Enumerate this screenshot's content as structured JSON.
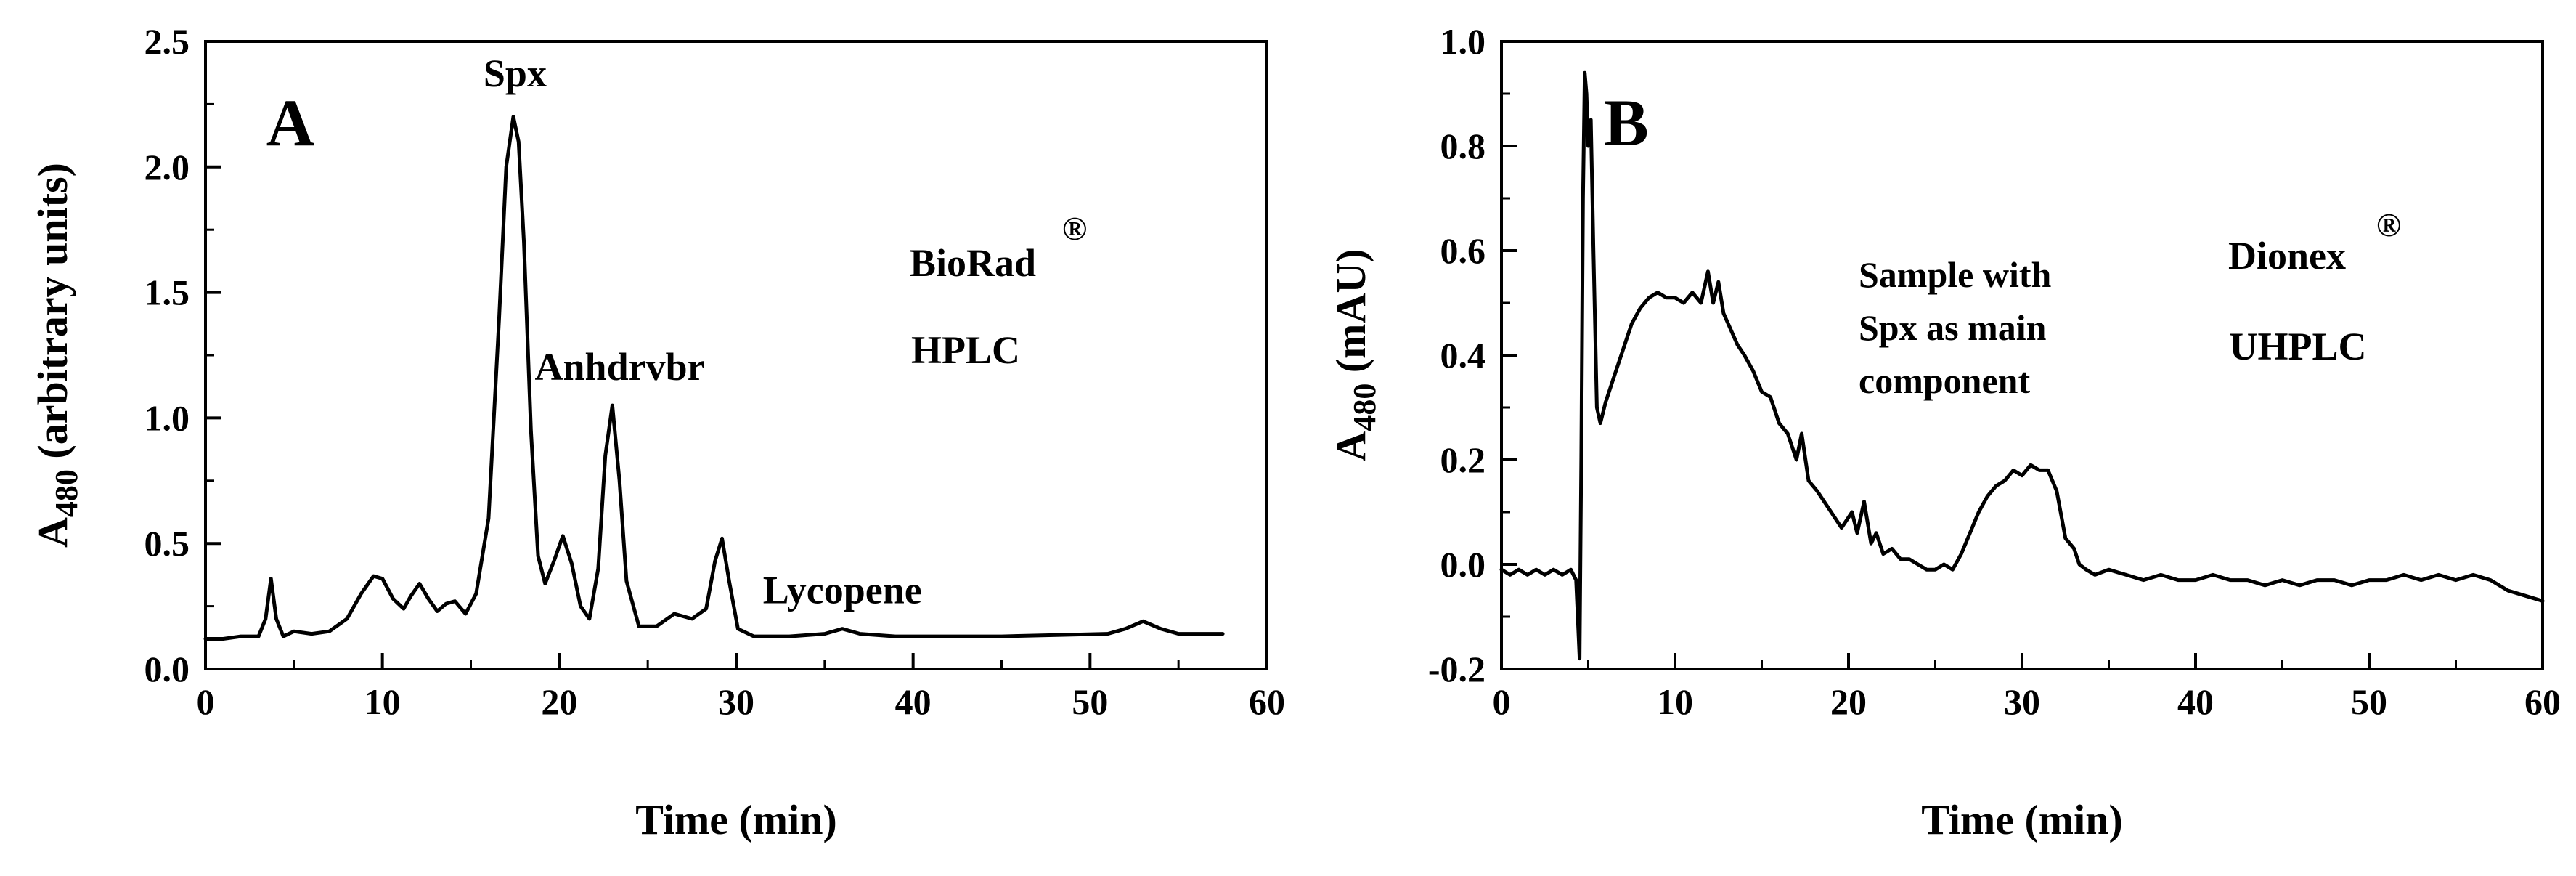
{
  "chart_data": [
    {
      "type": "line",
      "panel_label": "A",
      "xlabel": "Time (min)",
      "ylabel_main": "A",
      "ylabel_sub": "480",
      "ylabel_rest": " (arbitrary units)",
      "xlim": [
        0,
        60
      ],
      "ylim": [
        0,
        2.5
      ],
      "xticks": [
        0,
        10,
        20,
        30,
        40,
        50,
        60
      ],
      "xtick_labels": [
        "0",
        "10",
        "20",
        "30",
        "40",
        "50",
        "60"
      ],
      "yticks": [
        0,
        0.5,
        1.0,
        1.5,
        2.0,
        2.5
      ],
      "ytick_labels": [
        "0.0",
        "0.5",
        "1.0",
        "1.5",
        "2.0",
        "2.5"
      ],
      "grid": false,
      "instrument": [
        "BioRad",
        "HPLC"
      ],
      "registered_mark": "®",
      "annotations": [
        {
          "text": "Spx",
          "x": 17.5,
          "y": 2.22
        },
        {
          "text": "Anhdrvbr",
          "x": 22.8,
          "y": 1.05
        },
        {
          "text": "Lycopene",
          "x": 36.0,
          "y": 0.16
        }
      ],
      "series": [
        {
          "x": [
            0,
            1,
            2,
            3,
            3.4,
            3.7,
            4.0,
            4.4,
            5,
            6,
            7,
            8,
            8.8,
            9.5,
            10.0,
            10.6,
            11.2,
            11.6,
            12.1,
            12.6,
            13.1,
            13.6,
            14.1,
            14.7,
            15.3,
            16.0,
            16.6,
            17.0,
            17.4,
            17.7,
            18.0,
            18.4,
            18.8,
            19.2,
            19.7,
            20.2,
            20.7,
            21.2,
            21.7,
            22.2,
            22.6,
            23.0,
            23.4,
            23.8,
            24.5,
            25.5,
            26.5,
            27.5,
            28.3,
            28.8,
            29.2,
            29.6,
            30.1,
            31,
            33,
            35,
            36,
            37,
            39,
            45,
            51,
            52,
            53,
            54,
            55,
            56,
            57.5
          ],
          "y": [
            0.12,
            0.12,
            0.13,
            0.13,
            0.2,
            0.36,
            0.2,
            0.13,
            0.15,
            0.14,
            0.15,
            0.2,
            0.3,
            0.37,
            0.36,
            0.28,
            0.24,
            0.29,
            0.34,
            0.28,
            0.23,
            0.26,
            0.27,
            0.22,
            0.3,
            0.6,
            1.4,
            2.0,
            2.2,
            2.1,
            1.7,
            0.95,
            0.45,
            0.34,
            0.43,
            0.53,
            0.42,
            0.25,
            0.2,
            0.4,
            0.85,
            1.05,
            0.75,
            0.35,
            0.17,
            0.17,
            0.22,
            0.2,
            0.24,
            0.43,
            0.52,
            0.35,
            0.16,
            0.13,
            0.13,
            0.14,
            0.16,
            0.14,
            0.13,
            0.13,
            0.14,
            0.16,
            0.19,
            0.16,
            0.14,
            0.14,
            0.14
          ]
        }
      ]
    },
    {
      "type": "line",
      "panel_label": "B",
      "xlabel": "Time (min)",
      "ylabel_main": "A",
      "ylabel_sub": "480",
      "ylabel_rest": " (mAU)",
      "xlim": [
        0,
        60
      ],
      "ylim": [
        -0.2,
        1.0
      ],
      "xticks": [
        0,
        10,
        20,
        30,
        40,
        50,
        60
      ],
      "xtick_labels": [
        "0",
        "10",
        "20",
        "30",
        "40",
        "50",
        "60"
      ],
      "yticks": [
        -0.2,
        0.0,
        0.2,
        0.4,
        0.6,
        0.8,
        1.0
      ],
      "ytick_labels": [
        "-0.2",
        "0.0",
        "0.2",
        "0.4",
        "0.6",
        "0.8",
        "1.0"
      ],
      "grid": false,
      "instrument": [
        "Dionex",
        "UHPLC"
      ],
      "registered_mark": "®",
      "annotations": [
        {
          "text_lines": [
            "Sample with",
            "Spx as main",
            "component"
          ]
        }
      ],
      "series": [
        {
          "x": [
            0,
            0.5,
            1,
            1.5,
            2,
            2.5,
            3,
            3.5,
            4,
            4.3,
            4.5,
            4.6,
            4.7,
            4.8,
            4.9,
            5.0,
            5.15,
            5.3,
            5.5,
            5.7,
            6,
            6.5,
            7,
            7.5,
            8,
            8.5,
            9,
            9.5,
            10,
            10.5,
            11,
            11.5,
            11.9,
            12.2,
            12.5,
            12.8,
            13.2,
            13.6,
            14,
            14.5,
            15,
            15.5,
            16,
            16.5,
            17,
            17.3,
            17.7,
            18.2,
            19,
            19.6,
            20.2,
            20.5,
            20.9,
            21.3,
            21.6,
            22,
            22.5,
            23,
            23.5,
            24,
            24.5,
            25,
            25.5,
            26,
            26.5,
            27,
            27.5,
            28,
            28.5,
            29,
            29.5,
            30,
            30.5,
            31,
            31.5,
            32,
            32.5,
            33,
            33.3,
            33.7,
            34.2,
            35,
            36,
            37,
            38,
            39,
            40,
            41,
            42,
            43,
            44,
            45,
            46,
            47,
            48,
            49,
            50,
            51,
            52,
            53,
            54,
            55,
            56,
            57,
            58,
            59,
            60
          ],
          "y": [
            -0.01,
            -0.02,
            -0.01,
            -0.02,
            -0.01,
            -0.02,
            -0.01,
            -0.02,
            -0.01,
            -0.03,
            -0.18,
            0.2,
            0.7,
            0.94,
            0.9,
            0.8,
            0.85,
            0.6,
            0.3,
            0.27,
            0.31,
            0.36,
            0.41,
            0.46,
            0.49,
            0.51,
            0.52,
            0.51,
            0.51,
            0.5,
            0.52,
            0.5,
            0.56,
            0.5,
            0.54,
            0.48,
            0.45,
            0.42,
            0.4,
            0.37,
            0.33,
            0.32,
            0.27,
            0.25,
            0.2,
            0.25,
            0.16,
            0.14,
            0.1,
            0.07,
            0.1,
            0.06,
            0.12,
            0.04,
            0.06,
            0.02,
            0.03,
            0.01,
            0.01,
            0.0,
            -0.01,
            -0.01,
            0.0,
            -0.01,
            0.02,
            0.06,
            0.1,
            0.13,
            0.15,
            0.16,
            0.18,
            0.17,
            0.19,
            0.18,
            0.18,
            0.14,
            0.05,
            0.03,
            0.0,
            -0.01,
            -0.02,
            -0.01,
            -0.02,
            -0.03,
            -0.02,
            -0.03,
            -0.03,
            -0.02,
            -0.03,
            -0.03,
            -0.04,
            -0.03,
            -0.04,
            -0.03,
            -0.03,
            -0.04,
            -0.03,
            -0.03,
            -0.02,
            -0.03,
            -0.02,
            -0.03,
            -0.02,
            -0.03,
            -0.05,
            -0.06,
            -0.07
          ]
        }
      ]
    }
  ]
}
